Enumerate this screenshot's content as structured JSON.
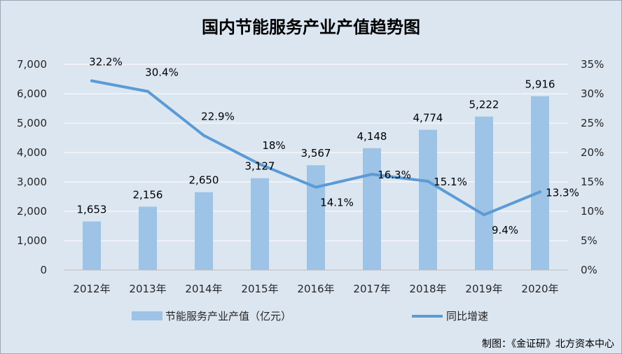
{
  "chart_data": {
    "type": "bar",
    "title": "国内节能服务产业产值趋势图",
    "categories": [
      "2012年",
      "2013年",
      "2014年",
      "2015年",
      "2016年",
      "2017年",
      "2018年",
      "2019年",
      "2020年"
    ],
    "series": [
      {
        "name": "节能服务产业产值（亿元）",
        "type": "bar",
        "axis": "left",
        "color": "#9dc3e6",
        "values": [
          1653,
          2156,
          2650,
          3127,
          3567,
          4148,
          4774,
          5222,
          5916
        ],
        "labels": [
          "1,653",
          "2,156",
          "2,650",
          "3,127",
          "3,567",
          "4,148",
          "4,774",
          "5,222",
          "5,916"
        ]
      },
      {
        "name": "同比增速",
        "type": "line",
        "axis": "right",
        "color": "#5b9bd5",
        "values": [
          32.2,
          30.4,
          22.9,
          18,
          14.1,
          16.3,
          15.1,
          9.4,
          13.3
        ],
        "labels": [
          "32.2%",
          "30.4%",
          "22.9%",
          "18%",
          "14.1%",
          "16.3%",
          "15.1%",
          "9.4%",
          "13.3%"
        ]
      }
    ],
    "y_left": {
      "min": 0,
      "max": 7000,
      "ticks": [
        "0",
        "1,000",
        "2,000",
        "3,000",
        "4,000",
        "5,000",
        "6,000",
        "7,000"
      ]
    },
    "y_right": {
      "min": 0,
      "max": 35,
      "ticks": [
        "0%",
        "5%",
        "10%",
        "15%",
        "20%",
        "25%",
        "30%",
        "35%"
      ]
    },
    "grid": true,
    "legend_position": "bottom",
    "source": "制图：《金证研》北方资本中心"
  }
}
